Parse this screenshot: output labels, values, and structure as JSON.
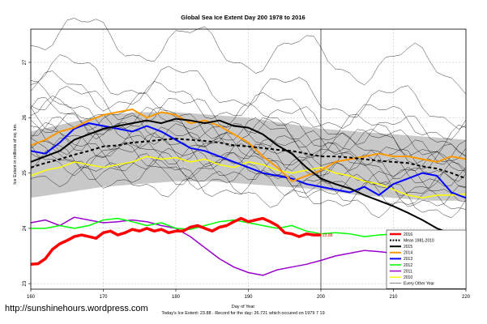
{
  "chart_data": {
    "type": "line",
    "title": "Global Sea Ice Extent Day 200 1978 to 2016",
    "xlabel": "Day of Year",
    "ylabel": "Ice Extent in millions of sq. km.",
    "xlim": [
      160,
      220
    ],
    "ylim": [
      22.9,
      27.6
    ],
    "x_ticks": [
      160,
      170,
      180,
      190,
      200,
      210,
      220
    ],
    "y_ticks": [
      23,
      24,
      25,
      26,
      27
    ],
    "grid": true,
    "vertical_marker_x": 200,
    "legend_placement": "bottom-right",
    "footer": "Today's Ice Extent: 23.88 . Record for the day: 26.721 which occured on 1979 7 19",
    "watermark": "http://sunshinehours.wordpress.com",
    "current_annotation": "23.88",
    "std_band": {
      "x": [
        160,
        165,
        170,
        175,
        180,
        185,
        190,
        195,
        200,
        205,
        210,
        215,
        220
      ],
      "upper": [
        25.75,
        25.9,
        26.05,
        26.1,
        26.1,
        26.05,
        26.0,
        25.9,
        25.8,
        25.75,
        25.7,
        25.65,
        25.6
      ],
      "lower": [
        24.55,
        24.65,
        24.75,
        24.8,
        24.85,
        24.85,
        24.8,
        24.75,
        24.7,
        24.6,
        24.55,
        24.5,
        24.5
      ]
    },
    "series": [
      {
        "name": "2016",
        "color": "#ff0000",
        "width": 3.5,
        "dash": "",
        "x": [
          160,
          161,
          162,
          163,
          164,
          165,
          166,
          167,
          168,
          169,
          170,
          171,
          172,
          173,
          174,
          175,
          176,
          177,
          178,
          179,
          180,
          181,
          182,
          183,
          184,
          185,
          186,
          187,
          188,
          189,
          190,
          191,
          192,
          193,
          194,
          195,
          196,
          197,
          198,
          199,
          200
        ],
        "y": [
          23.35,
          23.36,
          23.45,
          23.62,
          23.72,
          23.78,
          23.85,
          23.88,
          23.85,
          23.82,
          23.92,
          23.95,
          23.88,
          23.92,
          23.98,
          23.95,
          24.0,
          23.95,
          23.98,
          23.92,
          23.95,
          23.95,
          24.02,
          24.05,
          24.0,
          23.95,
          24.02,
          24.05,
          24.12,
          24.18,
          24.12,
          24.15,
          24.18,
          24.12,
          24.05,
          23.92,
          23.9,
          23.85,
          23.9,
          23.88,
          23.88
        ]
      },
      {
        "name": "Mean 1981-2010",
        "color": "#000000",
        "width": 2,
        "dash": "4,3",
        "x": [
          160,
          162,
          164,
          166,
          168,
          170,
          172,
          174,
          176,
          178,
          180,
          182,
          184,
          186,
          188,
          190,
          192,
          194,
          196,
          198,
          200,
          202,
          204,
          206,
          208,
          210,
          212,
          214,
          216,
          218,
          220
        ],
        "y": [
          25.1,
          25.18,
          25.25,
          25.33,
          25.4,
          25.48,
          25.5,
          25.55,
          25.57,
          25.6,
          25.62,
          25.6,
          25.58,
          25.55,
          25.5,
          25.48,
          25.45,
          25.42,
          25.4,
          25.35,
          25.3,
          25.3,
          25.28,
          25.25,
          25.22,
          25.2,
          25.18,
          25.12,
          25.08,
          25.0,
          24.9
        ]
      },
      {
        "name": "2015",
        "color": "#000000",
        "width": 2,
        "dash": "",
        "x": [
          160,
          162,
          164,
          166,
          168,
          170,
          172,
          174,
          176,
          178,
          180,
          182,
          184,
          186,
          188,
          190,
          192,
          194,
          196,
          198,
          200,
          202,
          204,
          206,
          208,
          210,
          212,
          214,
          216,
          218,
          220
        ],
        "y": [
          25.2,
          25.3,
          25.4,
          25.6,
          25.7,
          25.8,
          25.85,
          25.9,
          25.95,
          25.9,
          25.98,
          25.95,
          25.9,
          25.95,
          25.85,
          25.82,
          25.7,
          25.5,
          25.35,
          25.1,
          24.9,
          24.8,
          24.72,
          24.6,
          24.5,
          24.4,
          24.28,
          24.15,
          24.0,
          23.9,
          23.85
        ]
      },
      {
        "name": "2014",
        "color": "#ff9900",
        "width": 2,
        "dash": "",
        "x": [
          160,
          162,
          164,
          166,
          168,
          170,
          172,
          174,
          176,
          178,
          180,
          182,
          184,
          186,
          188,
          190,
          192,
          194,
          196,
          198,
          200,
          202,
          204,
          206,
          208,
          210,
          212,
          214,
          216,
          218,
          220
        ],
        "y": [
          25.5,
          25.6,
          25.75,
          25.82,
          25.95,
          26.05,
          26.1,
          26.15,
          26.0,
          26.1,
          26.05,
          25.9,
          25.95,
          25.85,
          25.7,
          25.55,
          25.3,
          25.1,
          24.85,
          24.95,
          25.05,
          25.2,
          25.25,
          25.3,
          25.35,
          25.3,
          25.3,
          25.25,
          25.2,
          25.3,
          25.25
        ]
      },
      {
        "name": "2013",
        "color": "#0000ff",
        "width": 2,
        "dash": "",
        "x": [
          160,
          162,
          164,
          166,
          168,
          170,
          172,
          174,
          176,
          178,
          180,
          182,
          184,
          186,
          188,
          190,
          192,
          194,
          196,
          198,
          200,
          202,
          204,
          206,
          208,
          210,
          212,
          214,
          216,
          218,
          220
        ],
        "y": [
          25.4,
          25.35,
          25.55,
          25.8,
          25.9,
          25.85,
          25.8,
          25.75,
          25.85,
          25.75,
          25.6,
          25.45,
          25.4,
          25.3,
          25.2,
          25.1,
          25.0,
          24.95,
          24.9,
          24.8,
          24.75,
          24.7,
          24.65,
          24.75,
          24.6,
          24.8,
          24.9,
          25.0,
          24.95,
          24.65,
          24.55
        ]
      },
      {
        "name": "2012",
        "color": "#00ff00",
        "width": 1.5,
        "dash": "",
        "x": [
          160,
          162,
          164,
          166,
          168,
          170,
          172,
          174,
          176,
          178,
          180,
          182,
          184,
          186,
          188,
          190,
          192,
          194,
          196,
          198,
          200,
          202,
          204,
          206,
          208,
          210,
          212,
          214,
          216,
          218,
          220
        ],
        "y": [
          24.0,
          24.0,
          24.05,
          24.0,
          24.05,
          24.15,
          24.18,
          24.12,
          24.05,
          24.1,
          24.0,
          23.98,
          24.05,
          24.12,
          24.15,
          24.1,
          24.05,
          24.0,
          24.05,
          23.95,
          23.9,
          23.92,
          23.9,
          23.85,
          23.88,
          23.9,
          23.85,
          23.75,
          23.65,
          23.5,
          23.45
        ]
      },
      {
        "name": "2011",
        "color": "#9900cc",
        "width": 1.5,
        "dash": "",
        "x": [
          160,
          162,
          164,
          166,
          168,
          170,
          172,
          174,
          176,
          178,
          180,
          182,
          184,
          186,
          188,
          190,
          192,
          194,
          196,
          198,
          200,
          202,
          204,
          206,
          208,
          210,
          212,
          214,
          216,
          218,
          220
        ],
        "y": [
          24.1,
          24.15,
          24.05,
          24.2,
          24.15,
          24.1,
          24.12,
          24.15,
          24.12,
          24.05,
          24.0,
          23.85,
          23.65,
          23.45,
          23.3,
          23.2,
          23.15,
          23.25,
          23.3,
          23.35,
          23.42,
          23.5,
          23.55,
          23.6,
          23.58,
          23.55,
          23.6,
          23.65,
          23.6,
          23.58,
          23.55
        ]
      },
      {
        "name": "2010",
        "color": "#ffff00",
        "width": 1.5,
        "dash": "",
        "x": [
          160,
          162,
          164,
          166,
          168,
          170,
          172,
          174,
          176,
          178,
          180,
          182,
          184,
          186,
          188,
          190,
          192,
          194,
          196,
          198,
          200,
          202,
          204,
          206,
          208,
          210,
          212,
          214,
          216,
          218,
          220
        ],
        "y": [
          24.95,
          25.05,
          25.1,
          25.2,
          25.15,
          25.1,
          25.15,
          25.2,
          25.3,
          25.25,
          25.28,
          25.2,
          25.25,
          25.15,
          25.1,
          25.2,
          25.15,
          25.05,
          25.0,
          25.05,
          25.1,
          25.0,
          24.95,
          24.85,
          24.8,
          24.7,
          24.6,
          24.55,
          24.6,
          24.6,
          24.62
        ]
      },
      {
        "name": "Every Other Year",
        "color": "#000000",
        "width": 0.5,
        "dash": "",
        "legend_only": true,
        "x": [],
        "y": []
      }
    ],
    "background_years": [
      {
        "base": 27.2,
        "amp": 0.35,
        "phase": 0.3
      },
      {
        "base": 26.5,
        "amp": 0.3,
        "phase": 1.1
      },
      {
        "base": 26.2,
        "amp": 0.25,
        "phase": 2.0
      },
      {
        "base": 26.0,
        "amp": 0.25,
        "phase": 0.7
      },
      {
        "base": 25.9,
        "amp": 0.3,
        "phase": 3.1
      },
      {
        "base": 25.8,
        "amp": 0.2,
        "phase": 1.7
      },
      {
        "base": 25.7,
        "amp": 0.25,
        "phase": 2.6
      },
      {
        "base": 25.6,
        "amp": 0.2,
        "phase": 0.2
      },
      {
        "base": 25.5,
        "amp": 0.3,
        "phase": 4.0
      },
      {
        "base": 25.45,
        "amp": 0.2,
        "phase": 1.4
      },
      {
        "base": 25.35,
        "amp": 0.25,
        "phase": 5.0
      },
      {
        "base": 25.3,
        "amp": 0.2,
        "phase": 2.2
      },
      {
        "base": 25.2,
        "amp": 0.3,
        "phase": 3.6
      },
      {
        "base": 25.1,
        "amp": 0.2,
        "phase": 0.9
      },
      {
        "base": 25.0,
        "amp": 0.25,
        "phase": 4.4
      },
      {
        "base": 24.9,
        "amp": 0.2,
        "phase": 2.9
      },
      {
        "base": 24.8,
        "amp": 0.25,
        "phase": 1.9
      },
      {
        "base": 24.7,
        "amp": 0.2,
        "phase": 5.5
      }
    ]
  }
}
